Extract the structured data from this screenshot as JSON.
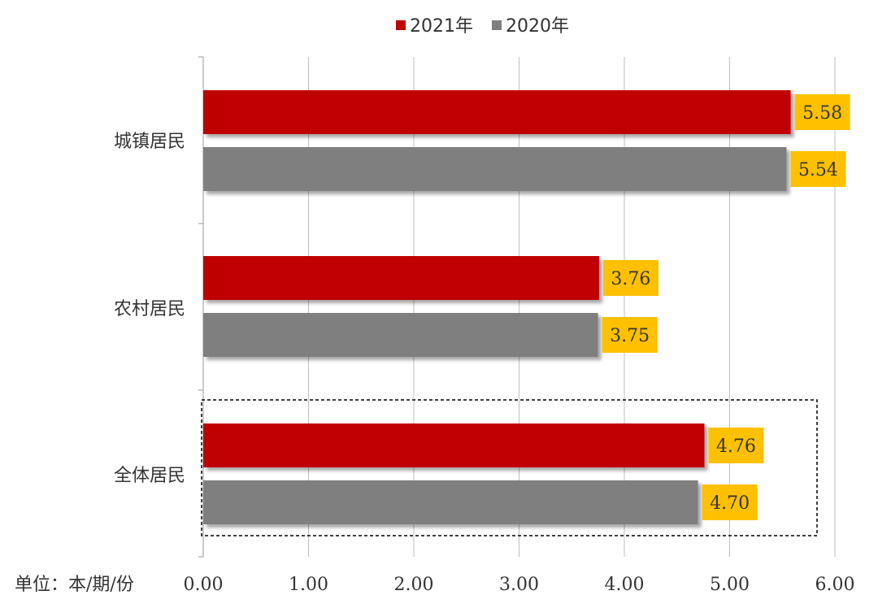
{
  "chart_data": {
    "type": "bar",
    "orientation": "horizontal",
    "categories": [
      "城镇居民",
      "农村居民",
      "全体居民"
    ],
    "series": [
      {
        "name": "2021年",
        "values": [
          5.58,
          3.76,
          4.76
        ]
      },
      {
        "name": "2020年",
        "values": [
          5.54,
          3.75,
          4.7
        ]
      }
    ],
    "data_labels": [
      [
        "5.58",
        "3.76",
        "4.76"
      ],
      [
        "5.54",
        "3.75",
        "4.70"
      ]
    ],
    "x_ticks": [
      "0.00",
      "1.00",
      "2.00",
      "3.00",
      "4.00",
      "5.00",
      "6.00"
    ],
    "xlim": [
      0,
      6
    ],
    "unit_label": "单位：本/期/份",
    "legend_position": "top-center",
    "grid": "vertical",
    "highlighted_category": "全体居民",
    "colors": {
      "series_2021": "#c00000",
      "series_2020": "#7f7f7f",
      "label_background": "#ffc000",
      "grid": "#bfbfbf",
      "axis": "#999999",
      "highlight_border": "#000000"
    }
  }
}
